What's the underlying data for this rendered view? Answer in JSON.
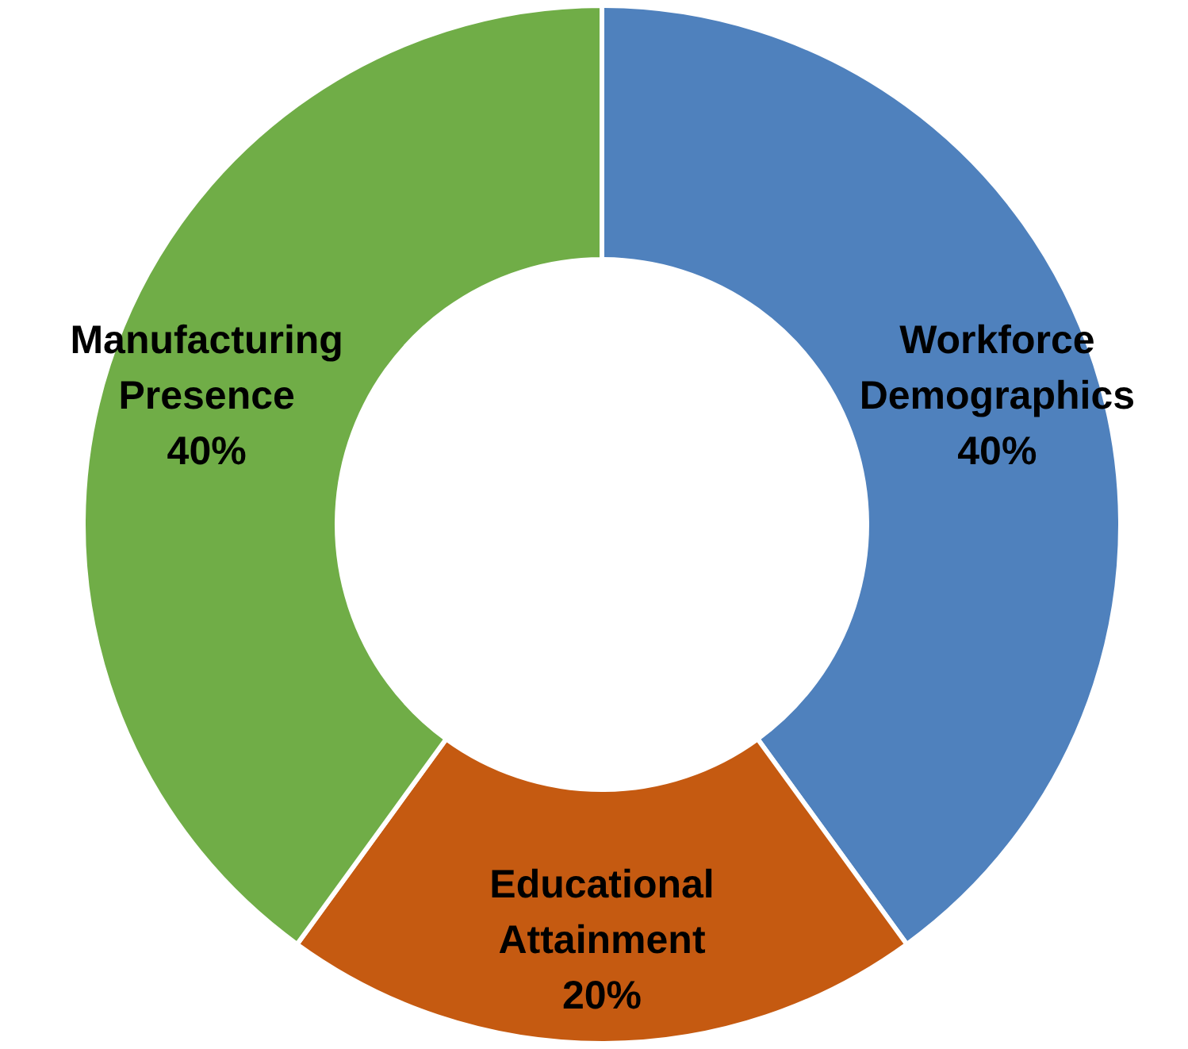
{
  "chart_data": {
    "type": "donut",
    "categories": [
      "Workforce Demographics",
      "Educational Attainment",
      "Manufacturing Presence"
    ],
    "values": [
      40,
      20,
      40
    ],
    "colors": [
      "#4f81bd",
      "#c55a11",
      "#70ad47"
    ],
    "value_labels": [
      "40%",
      "20%",
      "40%"
    ]
  }
}
